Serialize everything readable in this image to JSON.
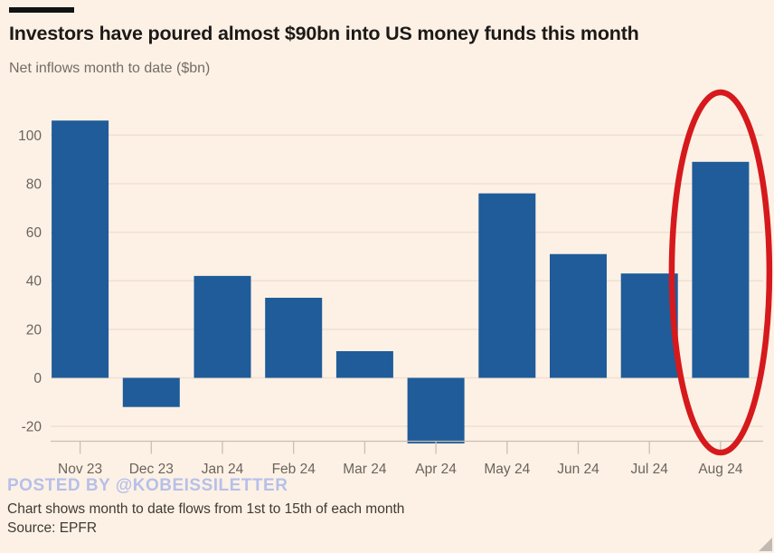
{
  "header": {
    "title": "Investors have poured almost $90bn into US money funds this month",
    "subtitle": "Net inflows month to date ($bn)"
  },
  "chart_data": {
    "type": "bar",
    "title": "Investors have poured almost $90bn into US money funds this month",
    "subtitle": "Net inflows month to date ($bn)",
    "xlabel": "",
    "ylabel": "Net inflows month to date ($bn)",
    "categories": [
      "Nov 23",
      "Dec 23",
      "Jan 24",
      "Feb 24",
      "Mar 24",
      "Apr 24",
      "May 24",
      "Jun 24",
      "Jul 24",
      "Aug 24"
    ],
    "values": [
      106,
      -12,
      42,
      33,
      11,
      -27,
      76,
      51,
      43,
      89
    ],
    "y_ticks": [
      -20,
      0,
      20,
      40,
      60,
      80,
      100
    ],
    "ylim": [
      -30,
      108
    ],
    "grid": true,
    "legend": "none",
    "bar_color": "#1f5c99",
    "annotation": {
      "type": "ellipse",
      "target_category": "Aug 24",
      "meaning": "highlight-circle around Aug 24 bar",
      "color": "#d6191c"
    }
  },
  "watermark": "POSTED BY @KOBEISSILETTER",
  "footer": {
    "note": "Chart shows month to date flows from 1st to 15th of each month",
    "source": "Source: EPFR"
  },
  "colors": {
    "background": "#fdf1e5",
    "bar": "#1f5c99",
    "grid": "#f0e0d0",
    "axis": "#cbbeb2",
    "tick_label": "#6b645d",
    "title_text": "#1c1917",
    "watermark": "#b6c0e9",
    "footer_text": "#3f3a34",
    "annotation_red": "#d6191c"
  }
}
